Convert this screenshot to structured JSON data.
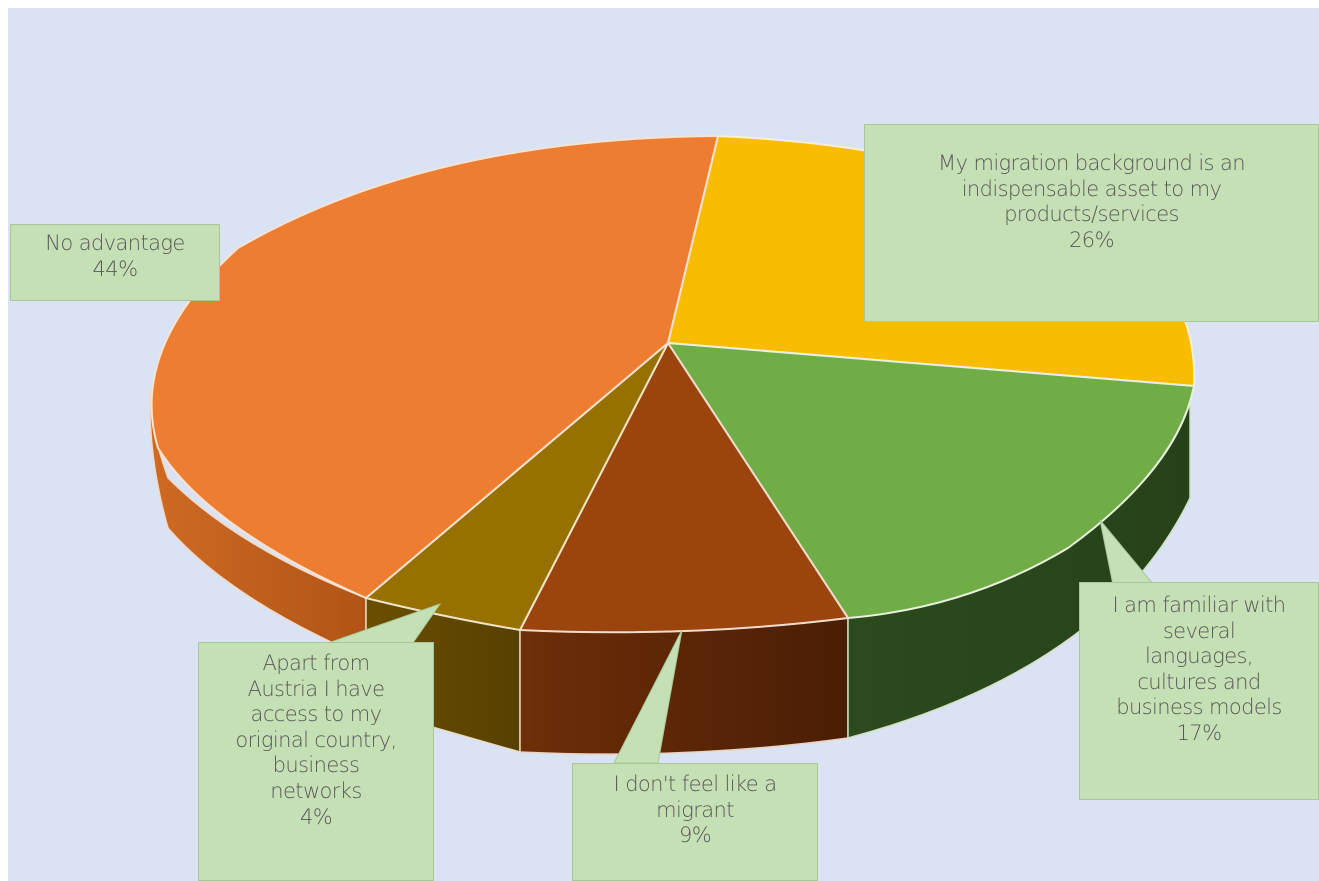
{
  "chart_data": {
    "type": "pie",
    "style": "3d-exploded",
    "slices": [
      {
        "label": "My migration background is an indispensable asset to  my products/services",
        "percent": 26,
        "value_text": "26%",
        "color": "#f9bc00"
      },
      {
        "label": "I am familiar with several languages, cultures and business models",
        "percent": 17,
        "value_text": "17%",
        "color": "#70ad47"
      },
      {
        "label": "I don't feel like a migrant",
        "percent": 9,
        "value_text": "9%",
        "color": "#9c440d"
      },
      {
        "label": "Apart from Austria I have access to my original country, business networks",
        "percent": 4,
        "value_text": "4%",
        "color": "#977100"
      },
      {
        "label": "No advantage",
        "percent": 44,
        "value_text": "44%",
        "color": "#ed7d31"
      }
    ],
    "label_lines": {
      "asset": "My migration background is an\nindispensable asset to  my\nproducts/services",
      "familiar": "I am familiar with\nseveral\nlanguages,\ncultures and\nbusiness models",
      "migrant": "I don't feel like a\nmigrant",
      "apart": "Apart from\nAustria I have\naccess to my\noriginal country,\nbusiness\nnetworks",
      "no_adv": "No advantage"
    },
    "background_color": "#dae3f3",
    "callout_color": "#c5e0b4"
  }
}
